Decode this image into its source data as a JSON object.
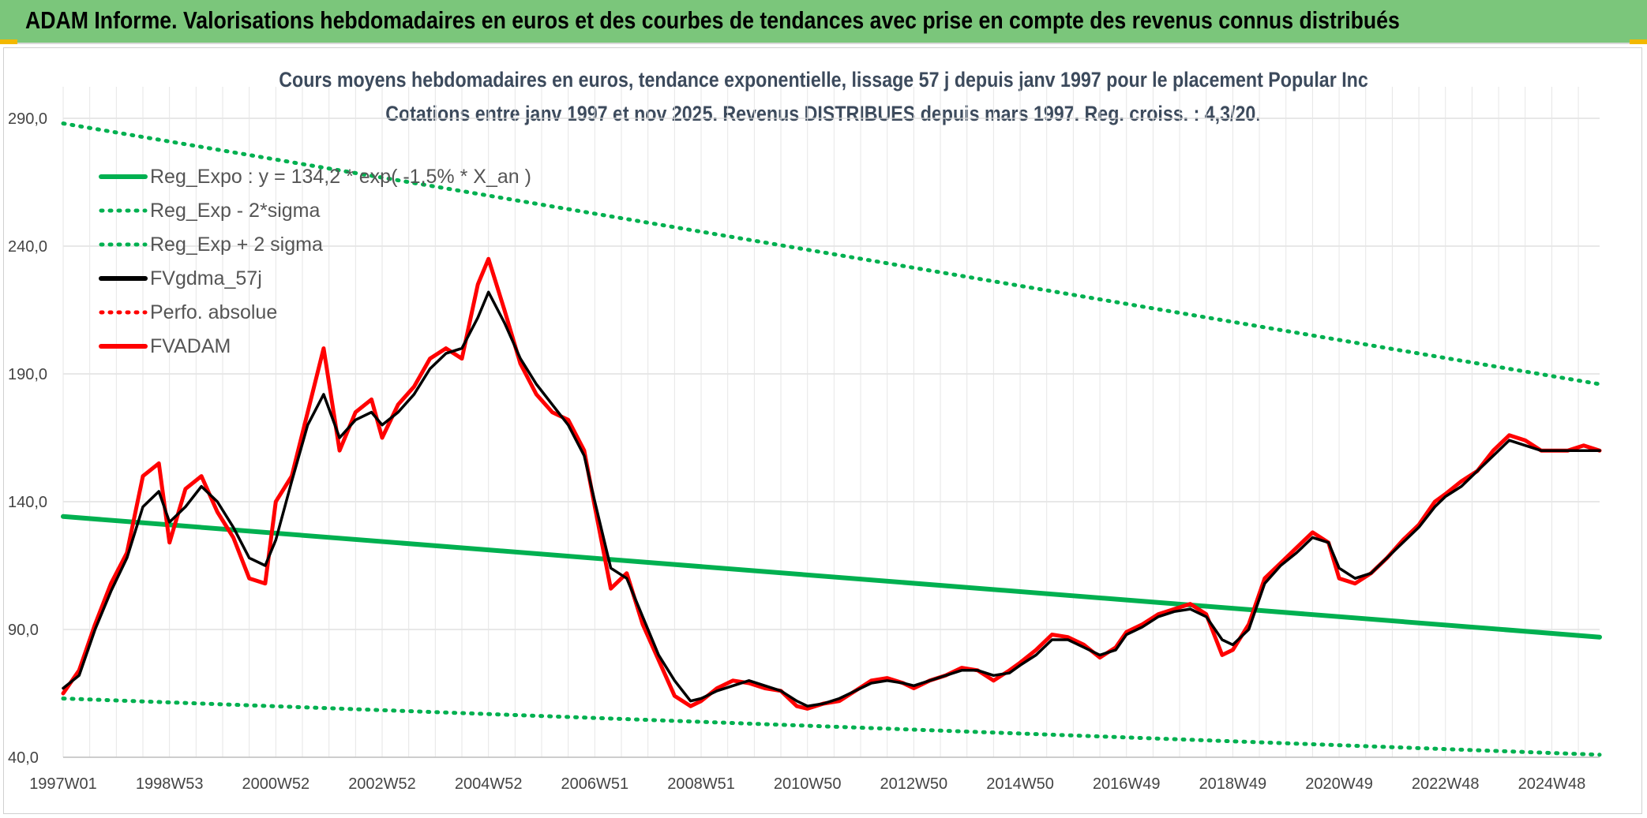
{
  "header": {
    "title": "ADAM Informe. Valorisations hebdomadaires en euros et des courbes de tendances avec prise en compte des revenus connus distribués"
  },
  "chart_data": {
    "type": "line",
    "title": "Cours moyens hebdomadaires en euros, tendance exponentielle, lissage 57 j depuis janv 1997 pour le placement Popular Inc",
    "subtitle": "Cotations entre janv 1997 et nov 2025. Revenus DISTRIBUES depuis mars 1997. Reg. croiss. : 4,3/20.",
    "xlabel": "",
    "ylabel": "",
    "x_range": [
      1997.0,
      2025.9
    ],
    "ylim": [
      40,
      290
    ],
    "y_ticks": [
      40,
      90,
      140,
      190,
      240,
      290
    ],
    "y_tick_labels": [
      "40,0",
      "90,0",
      "140,0",
      "190,0",
      "240,0",
      "290,0"
    ],
    "x_ticks": [
      {
        "label": "1997W01",
        "x": 1997.0
      },
      {
        "label": "1998W53",
        "x": 1999.0
      },
      {
        "label": "2000W52",
        "x": 2001.0
      },
      {
        "label": "2002W52",
        "x": 2003.0
      },
      {
        "label": "2004W52",
        "x": 2005.0
      },
      {
        "label": "2006W51",
        "x": 2007.0
      },
      {
        "label": "2008W51",
        "x": 2009.0
      },
      {
        "label": "2010W50",
        "x": 2011.0
      },
      {
        "label": "2012W50",
        "x": 2013.0
      },
      {
        "label": "2014W50",
        "x": 2015.0
      },
      {
        "label": "2016W49",
        "x": 2017.0
      },
      {
        "label": "2018W49",
        "x": 2019.0
      },
      {
        "label": "2020W49",
        "x": 2021.0
      },
      {
        "label": "2022W48",
        "x": 2023.0
      },
      {
        "label": "2024W48",
        "x": 2025.0
      }
    ],
    "grid": true,
    "legend_position": "top-left",
    "series": [
      {
        "name": "Reg_Expo : y = 134,2 * exp( -1,5% *  X_an )",
        "color": "#00b050",
        "style": "solid",
        "x": [
          1997.0,
          2025.9
        ],
        "y": [
          134.2,
          87.0
        ]
      },
      {
        "name": "Reg_Exp - 2*sigma",
        "color": "#00b050",
        "style": "dotted",
        "x": [
          1997.0,
          2025.9
        ],
        "y": [
          63.0,
          41.0
        ]
      },
      {
        "name": "Reg_Exp + 2 sigma",
        "color": "#00b050",
        "style": "dotted",
        "x": [
          1997.0,
          2025.9
        ],
        "y": [
          288.0,
          186.0
        ]
      },
      {
        "name": "FVgdma_57j",
        "color": "#000000",
        "style": "solid",
        "x": [
          1997.0,
          1997.3,
          1997.6,
          1997.9,
          1998.2,
          1998.5,
          1998.8,
          1999.0,
          1999.3,
          1999.6,
          1999.9,
          2000.2,
          2000.5,
          2000.8,
          2001.0,
          2001.3,
          2001.6,
          2001.9,
          2002.2,
          2002.5,
          2002.8,
          2003.0,
          2003.3,
          2003.6,
          2003.9,
          2004.2,
          2004.5,
          2004.8,
          2005.0,
          2005.3,
          2005.6,
          2005.9,
          2006.2,
          2006.5,
          2006.8,
          2007.0,
          2007.3,
          2007.6,
          2007.9,
          2008.2,
          2008.5,
          2008.8,
          2009.0,
          2009.3,
          2009.6,
          2009.9,
          2010.2,
          2010.5,
          2010.8,
          2011.0,
          2011.3,
          2011.6,
          2011.9,
          2012.2,
          2012.5,
          2012.8,
          2013.0,
          2013.3,
          2013.6,
          2013.9,
          2014.2,
          2014.5,
          2014.8,
          2015.0,
          2015.3,
          2015.6,
          2015.9,
          2016.2,
          2016.5,
          2016.8,
          2017.0,
          2017.3,
          2017.6,
          2017.9,
          2018.2,
          2018.5,
          2018.8,
          2019.0,
          2019.3,
          2019.6,
          2019.9,
          2020.2,
          2020.5,
          2020.8,
          2021.0,
          2021.3,
          2021.6,
          2021.9,
          2022.2,
          2022.5,
          2022.8,
          2023.0,
          2023.3,
          2023.6,
          2023.9,
          2024.2,
          2024.5,
          2024.8,
          2025.0,
          2025.3,
          2025.6,
          2025.9
        ],
        "y": [
          67,
          72,
          90,
          105,
          118,
          138,
          144,
          132,
          138,
          146,
          140,
          130,
          118,
          115,
          125,
          148,
          170,
          182,
          165,
          172,
          175,
          170,
          175,
          182,
          192,
          198,
          200,
          212,
          222,
          210,
          196,
          186,
          178,
          170,
          158,
          140,
          114,
          110,
          95,
          80,
          70,
          62,
          63,
          66,
          68,
          70,
          68,
          66,
          62,
          60,
          61,
          63,
          66,
          69,
          70,
          69,
          68,
          70,
          72,
          74,
          74,
          72,
          73,
          76,
          80,
          86,
          86,
          83,
          80,
          82,
          88,
          91,
          95,
          97,
          98,
          95,
          86,
          84,
          90,
          108,
          115,
          120,
          126,
          124,
          114,
          110,
          112,
          118,
          124,
          130,
          138,
          142,
          146,
          152,
          158,
          164,
          162,
          160,
          160,
          160,
          160,
          160
        ]
      },
      {
        "name": "Perfo. absolue",
        "color": "#ff0000",
        "style": "dotted",
        "x": [],
        "y": []
      },
      {
        "name": "FVADAM",
        "color": "#ff0000",
        "style": "solid",
        "x": [
          1997.0,
          1997.3,
          1997.6,
          1997.9,
          1998.2,
          1998.5,
          1998.8,
          1999.0,
          1999.3,
          1999.6,
          1999.9,
          2000.2,
          2000.5,
          2000.8,
          2001.0,
          2001.3,
          2001.6,
          2001.9,
          2002.2,
          2002.5,
          2002.8,
          2003.0,
          2003.3,
          2003.6,
          2003.9,
          2004.2,
          2004.5,
          2004.8,
          2005.0,
          2005.3,
          2005.6,
          2005.9,
          2006.2,
          2006.5,
          2006.8,
          2007.0,
          2007.3,
          2007.6,
          2007.9,
          2008.2,
          2008.5,
          2008.8,
          2009.0,
          2009.3,
          2009.6,
          2009.9,
          2010.2,
          2010.5,
          2010.8,
          2011.0,
          2011.3,
          2011.6,
          2011.9,
          2012.2,
          2012.5,
          2012.8,
          2013.0,
          2013.3,
          2013.6,
          2013.9,
          2014.2,
          2014.5,
          2014.8,
          2015.0,
          2015.3,
          2015.6,
          2015.9,
          2016.2,
          2016.5,
          2016.8,
          2017.0,
          2017.3,
          2017.6,
          2017.9,
          2018.2,
          2018.5,
          2018.8,
          2019.0,
          2019.3,
          2019.6,
          2019.9,
          2020.2,
          2020.5,
          2020.8,
          2021.0,
          2021.3,
          2021.6,
          2021.9,
          2022.2,
          2022.5,
          2022.8,
          2023.0,
          2023.3,
          2023.6,
          2023.9,
          2024.2,
          2024.5,
          2024.8,
          2025.0,
          2025.3,
          2025.6,
          2025.9
        ],
        "y": [
          65,
          74,
          92,
          108,
          120,
          150,
          155,
          124,
          145,
          150,
          136,
          126,
          110,
          108,
          140,
          150,
          175,
          200,
          160,
          175,
          180,
          165,
          178,
          185,
          196,
          200,
          196,
          225,
          235,
          215,
          194,
          182,
          175,
          172,
          160,
          138,
          106,
          112,
          92,
          78,
          64,
          60,
          62,
          67,
          70,
          69,
          67,
          66,
          60,
          59,
          61,
          62,
          66,
          70,
          71,
          69,
          67,
          70,
          72,
          75,
          74,
          70,
          74,
          77,
          82,
          88,
          87,
          84,
          79,
          83,
          89,
          92,
          96,
          98,
          100,
          96,
          80,
          82,
          92,
          110,
          116,
          122,
          128,
          124,
          110,
          108,
          112,
          118,
          125,
          131,
          140,
          143,
          148,
          152,
          160,
          166,
          164,
          160,
          160,
          160,
          162,
          160
        ]
      }
    ]
  }
}
